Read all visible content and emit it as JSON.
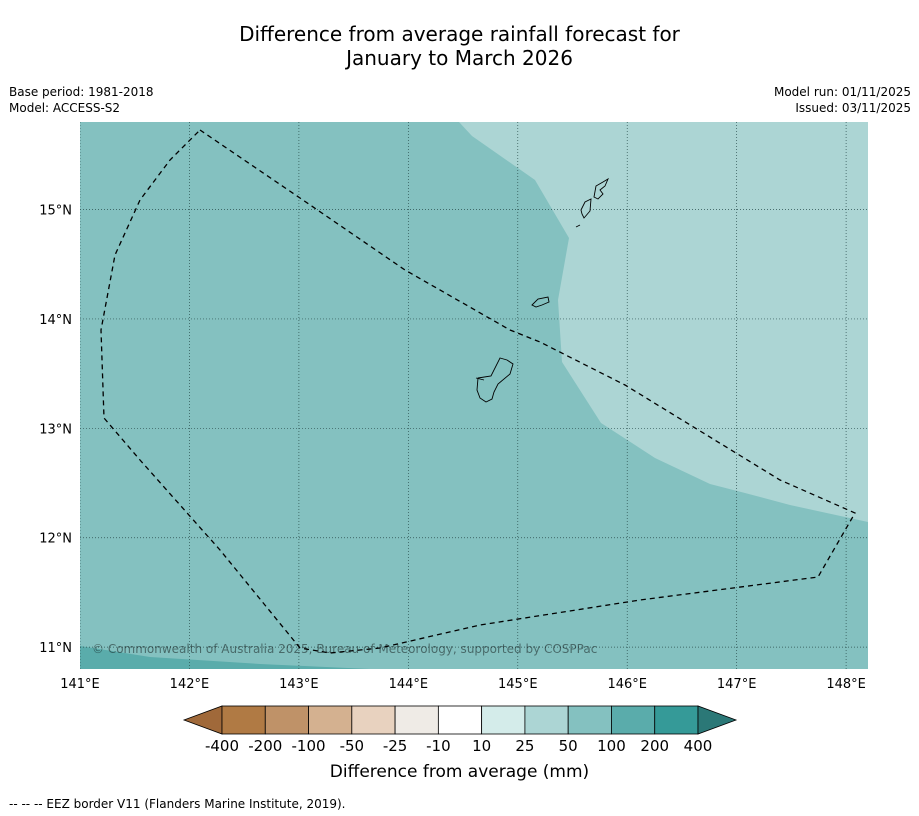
{
  "title_line1": "Difference from average rainfall forecast for",
  "title_line2": "January to March 2026",
  "meta_left": [
    "Base period: 1981-2018",
    "Model: ACCESS-S2"
  ],
  "meta_right": [
    "Model run: 01/11/2025",
    "Issued: 03/11/2025"
  ],
  "copyright": "© Commonwealth of Australia 2025, Bureau of Meteorology, supported by COSPPac",
  "map": {
    "lon_range": [
      141,
      148.2
    ],
    "lat_range": [
      10.8,
      15.8
    ],
    "lon_ticks": [
      141,
      142,
      143,
      144,
      145,
      146,
      147,
      148
    ],
    "lon_labels": [
      "141°E",
      "142°E",
      "143°E",
      "144°E",
      "145°E",
      "146°E",
      "147°E",
      "148°E"
    ],
    "lat_ticks": [
      15,
      14,
      13,
      12,
      11
    ],
    "lat_labels": [
      "15°N",
      "14°N",
      "13°N",
      "12°N",
      "11°N"
    ],
    "grid": true
  },
  "colorbar": {
    "ticks": [
      "-400",
      "-200",
      "-100",
      "-50",
      "-25",
      "-10",
      "10",
      "25",
      "50",
      "100",
      "200",
      "400"
    ],
    "colors": [
      "#a0693a",
      "#b07a44",
      "#bf9268",
      "#d4b190",
      "#e8d2bf",
      "#efebe6",
      "#ffffff",
      "#d4ecea",
      "#acd5d4",
      "#84c1c0",
      "#5aacab",
      "#359a98",
      "#2b7877"
    ],
    "label": "Difference from average (mm)"
  },
  "footnote": "--  --  -- EEZ border V11 (Flanders Marine Institute, 2019)."
}
